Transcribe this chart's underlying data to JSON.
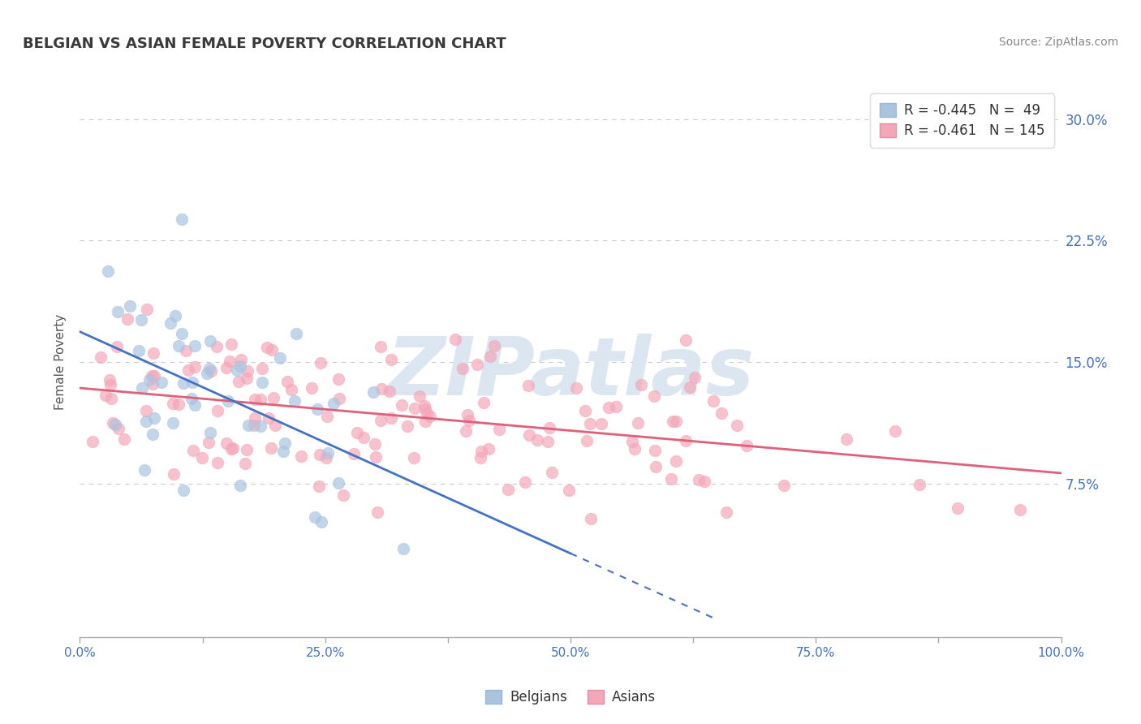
{
  "title": "BELGIAN VS ASIAN FEMALE POVERTY CORRELATION CHART",
  "source_text": "Source: ZipAtlas.com",
  "ylabel": "Female Poverty",
  "xlim": [
    0.0,
    1.0
  ],
  "ylim": [
    -0.02,
    0.32
  ],
  "plot_ylim": [
    0.0,
    0.3
  ],
  "xticks": [
    0.0,
    0.125,
    0.25,
    0.375,
    0.5,
    0.625,
    0.75,
    0.875,
    1.0
  ],
  "xtick_labels": [
    "0.0%",
    "",
    "25.0%",
    "",
    "50.0%",
    "",
    "75.0%",
    "",
    "100.0%"
  ],
  "yticks": [
    0.075,
    0.15,
    0.225,
    0.3
  ],
  "ytick_labels": [
    "7.5%",
    "15.0%",
    "22.5%",
    "30.0%"
  ],
  "legend_R_belgian": "-0.445",
  "legend_N_belgian": "49",
  "legend_R_asian": "-0.461",
  "legend_N_asian": "145",
  "belgian_color": "#aac4e0",
  "asian_color": "#f4a7b9",
  "belgian_line_color": "#4472c4",
  "asian_line_color": "#e0607a",
  "title_color": "#3a3a3a",
  "axis_label_color": "#555555",
  "tick_color": "#4472c4",
  "source_color": "#888888",
  "watermark_color": "#dce6f0",
  "background_color": "#ffffff",
  "grid_color": "#cccccc",
  "belgian_seed": 42,
  "asian_seed": 7,
  "belgian_R": -0.445,
  "asian_R": -0.461,
  "belgian_N": 49,
  "asian_N": 145
}
